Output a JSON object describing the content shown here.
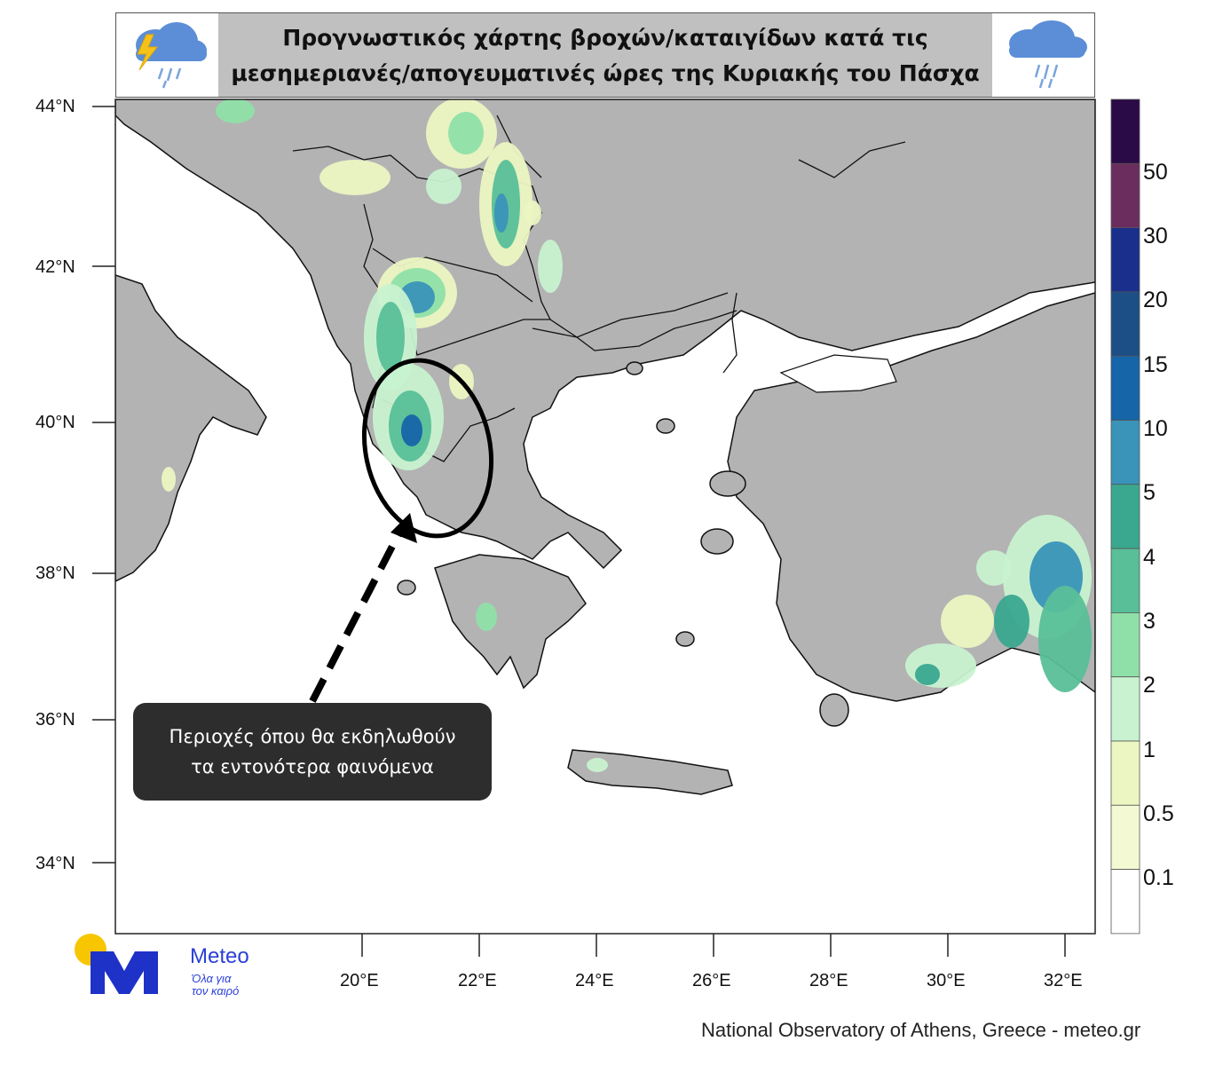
{
  "title": {
    "line1": "Προγνωστικός χάρτης βροχών/καταιγίδων κατά τις",
    "line2": "μεσημεριανές/απογευματινές ώρες της Κυριακής του Πάσχα"
  },
  "icons": {
    "left": "thunderstorm-cloud-icon",
    "right": "rain-cloud-icon"
  },
  "axes": {
    "lat_labels": [
      "44°N",
      "42°N",
      "40°N",
      "38°N",
      "36°N",
      "34°N"
    ],
    "lon_labels": [
      "20°E",
      "22°E",
      "24°E",
      "26°E",
      "28°E",
      "30°E",
      "32°E"
    ]
  },
  "colorbar": {
    "labels": [
      "50",
      "30",
      "20",
      "15",
      "10",
      "5",
      "4",
      "3",
      "2",
      "1",
      "0.5",
      "0.1"
    ],
    "colors": [
      "#2a0a47",
      "#6b2d5e",
      "#1a2f8c",
      "#1b4f86",
      "#1565a8",
      "#3a93b8",
      "#3aa88f",
      "#58bf98",
      "#8fe0a8",
      "#c8f2d0",
      "#ecf6c2",
      "#f3f9d3",
      "#ffffff"
    ]
  },
  "colors": {
    "land": "#b3b3b3",
    "sea": "#ffffff",
    "border": "#111111"
  },
  "callout": {
    "line1": "Περιοχές όπου θα εκδηλωθούν",
    "line2": "τα εντονότερα φαινόμενα"
  },
  "logo": {
    "name": "Meteo",
    "tagline_line1": "Όλα για",
    "tagline_line2": "τον καιρό"
  },
  "credit": "National Observatory of Athens, Greece - meteo.gr"
}
